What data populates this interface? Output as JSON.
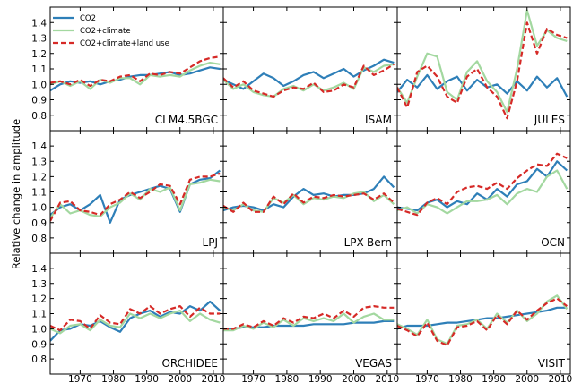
{
  "figure": {
    "ylabel": "Relative change in amplitude",
    "legend": {
      "placement": "top-left of first panel",
      "entries": [
        {
          "label": "CO2",
          "color": "#2e7fb8",
          "style": "solid"
        },
        {
          "label": "CO2+climate",
          "color": "#a3d8a0",
          "style": "solid"
        },
        {
          "label": "CO2+climate+land use",
          "color": "#d62a27",
          "style": "dashed"
        }
      ]
    }
  },
  "chart_data": {
    "type": "line",
    "layout": "3x3 small multiples",
    "xlim": [
      1961,
      2013
    ],
    "ylim": [
      0.7,
      1.5
    ],
    "x_ticks": [
      1970,
      1980,
      1990,
      2000,
      2010
    ],
    "x_tick_labels": [
      "1970",
      "1980",
      "1990",
      "2000",
      "2010"
    ],
    "y_ticks": [
      0.8,
      0.9,
      1.0,
      1.1,
      1.2,
      1.3,
      1.4
    ],
    "y_tick_labels": [
      "0.8",
      "0.9",
      "1.0",
      "1.1",
      "1.2",
      "1.3",
      "1.4"
    ],
    "grid": false,
    "x": [
      1961,
      1964,
      1967,
      1970,
      1973,
      1976,
      1979,
      1982,
      1985,
      1988,
      1991,
      1994,
      1997,
      2000,
      2003,
      2006,
      2009,
      2012
    ],
    "panels": [
      {
        "model": "CLM4.5BGC",
        "co2": [
          0.96,
          1.0,
          1.02,
          1.01,
          1.02,
          1.0,
          1.02,
          1.03,
          1.05,
          1.06,
          1.06,
          1.07,
          1.08,
          1.06,
          1.07,
          1.09,
          1.11,
          1.1
        ],
        "co2_climate": [
          1.0,
          1.02,
          0.99,
          1.02,
          0.97,
          1.03,
          1.01,
          1.04,
          1.04,
          1.0,
          1.06,
          1.05,
          1.06,
          1.05,
          1.09,
          1.12,
          1.14,
          1.13
        ],
        "co2_climate_landuse": [
          1.01,
          1.02,
          1.0,
          1.03,
          0.99,
          1.03,
          1.02,
          1.05,
          1.06,
          1.02,
          1.07,
          1.06,
          1.08,
          1.07,
          1.11,
          1.15,
          1.17,
          1.18
        ]
      },
      {
        "model": "ISAM",
        "co2": [
          1.03,
          1.0,
          0.97,
          1.02,
          1.07,
          1.04,
          0.99,
          1.02,
          1.06,
          1.08,
          1.04,
          1.07,
          1.1,
          1.05,
          1.09,
          1.12,
          1.16,
          1.14
        ],
        "co2_climate": [
          1.03,
          0.97,
          1.0,
          0.95,
          0.93,
          0.92,
          0.97,
          0.99,
          0.96,
          1.0,
          0.96,
          0.98,
          1.01,
          0.97,
          1.11,
          1.08,
          1.12,
          1.13
        ],
        "co2_climate_landuse": [
          1.04,
          0.98,
          1.02,
          0.96,
          0.94,
          0.92,
          0.96,
          0.98,
          0.97,
          1.01,
          0.95,
          0.96,
          1.0,
          0.98,
          1.12,
          1.06,
          1.09,
          1.13
        ]
      },
      {
        "model": "JULES",
        "co2": [
          0.95,
          1.03,
          0.98,
          1.06,
          0.97,
          1.02,
          1.05,
          0.96,
          1.03,
          0.98,
          1.0,
          0.94,
          1.02,
          0.96,
          1.05,
          0.98,
          1.04,
          0.92
        ],
        "co2_climate": [
          0.98,
          0.88,
          1.05,
          1.2,
          1.18,
          0.95,
          0.9,
          1.08,
          1.15,
          1.02,
          0.95,
          0.82,
          1.1,
          1.48,
          1.25,
          1.35,
          1.3,
          1.28
        ],
        "co2_climate_landuse": [
          0.98,
          0.85,
          1.08,
          1.12,
          1.05,
          0.92,
          0.88,
          1.05,
          1.1,
          0.98,
          0.92,
          0.78,
          1.02,
          1.4,
          1.2,
          1.36,
          1.32,
          1.3
        ]
      },
      {
        "model": "LPJ",
        "co2": [
          0.95,
          1.0,
          1.02,
          0.98,
          1.02,
          1.08,
          0.9,
          1.05,
          1.08,
          1.1,
          1.12,
          1.14,
          1.12,
          0.97,
          1.15,
          1.18,
          1.19,
          1.24
        ],
        "co2_climate": [
          0.93,
          1.02,
          0.96,
          0.98,
          0.95,
          0.94,
          1.0,
          1.03,
          1.09,
          1.05,
          1.12,
          1.1,
          1.13,
          0.98,
          1.15,
          1.16,
          1.18,
          1.17
        ],
        "co2_climate_landuse": [
          0.91,
          1.03,
          1.04,
          0.98,
          0.97,
          0.95,
          1.02,
          1.05,
          1.1,
          1.06,
          1.1,
          1.15,
          1.14,
          1.02,
          1.18,
          1.2,
          1.2,
          1.22
        ]
      },
      {
        "model": "LPX-Bern",
        "co2": [
          0.98,
          1.0,
          1.01,
          1.0,
          0.98,
          1.02,
          1.0,
          1.07,
          1.12,
          1.08,
          1.09,
          1.07,
          1.08,
          1.08,
          1.09,
          1.12,
          1.2,
          1.13
        ],
        "co2_climate": [
          1.0,
          0.98,
          1.02,
          0.98,
          0.97,
          1.06,
          1.03,
          1.08,
          1.02,
          1.06,
          1.05,
          1.07,
          1.06,
          1.09,
          1.1,
          1.04,
          1.08,
          1.02
        ],
        "co2_climate_landuse": [
          1.01,
          0.97,
          1.03,
          0.97,
          0.97,
          1.07,
          1.02,
          1.09,
          1.03,
          1.07,
          1.06,
          1.08,
          1.07,
          1.08,
          1.09,
          1.05,
          1.09,
          1.03
        ]
      },
      {
        "model": "OCN",
        "co2": [
          1.0,
          0.99,
          0.98,
          1.03,
          1.05,
          1.0,
          1.04,
          1.02,
          1.09,
          1.05,
          1.12,
          1.07,
          1.15,
          1.17,
          1.25,
          1.2,
          1.3,
          1.24
        ],
        "co2_climate": [
          0.98,
          1.0,
          0.96,
          1.02,
          1.0,
          0.96,
          1.0,
          1.04,
          1.04,
          1.05,
          1.08,
          1.02,
          1.09,
          1.12,
          1.1,
          1.2,
          1.24,
          1.12
        ],
        "co2_climate_landuse": [
          0.99,
          0.97,
          0.95,
          1.03,
          1.06,
          1.02,
          1.1,
          1.13,
          1.14,
          1.12,
          1.16,
          1.12,
          1.19,
          1.24,
          1.28,
          1.27,
          1.35,
          1.32
        ]
      },
      {
        "model": "ORCHIDEE",
        "co2": [
          0.92,
          0.99,
          1.0,
          1.03,
          1.02,
          1.05,
          1.01,
          0.98,
          1.07,
          1.1,
          1.12,
          1.08,
          1.11,
          1.1,
          1.15,
          1.12,
          1.18,
          1.12
        ],
        "co2_climate": [
          1.0,
          0.97,
          1.02,
          1.03,
          0.99,
          1.06,
          1.02,
          1.01,
          1.1,
          1.07,
          1.1,
          1.07,
          1.1,
          1.12,
          1.05,
          1.1,
          1.06,
          1.04
        ],
        "co2_climate_landuse": [
          1.02,
          0.99,
          1.06,
          1.05,
          1.0,
          1.09,
          1.04,
          1.03,
          1.13,
          1.1,
          1.15,
          1.1,
          1.13,
          1.15,
          1.08,
          1.14,
          1.1,
          1.1
        ]
      },
      {
        "model": "VEGAS",
        "co2": [
          1.0,
          1.0,
          1.01,
          1.01,
          1.01,
          1.02,
          1.02,
          1.02,
          1.02,
          1.03,
          1.03,
          1.03,
          1.03,
          1.04,
          1.04,
          1.04,
          1.05,
          1.05
        ],
        "co2_climate": [
          0.99,
          0.99,
          1.02,
          1.0,
          1.04,
          1.01,
          1.06,
          1.02,
          1.07,
          1.05,
          1.07,
          1.05,
          1.1,
          1.04,
          1.08,
          1.1,
          1.06,
          1.06
        ],
        "co2_climate_landuse": [
          1.0,
          1.0,
          1.03,
          1.01,
          1.05,
          1.02,
          1.07,
          1.04,
          1.08,
          1.07,
          1.1,
          1.07,
          1.12,
          1.08,
          1.14,
          1.15,
          1.14,
          1.14
        ]
      },
      {
        "model": "VISIT",
        "co2": [
          1.0,
          1.02,
          1.02,
          1.02,
          1.03,
          1.04,
          1.04,
          1.05,
          1.06,
          1.07,
          1.07,
          1.08,
          1.09,
          1.1,
          1.11,
          1.12,
          1.14,
          1.14
        ],
        "co2_climate": [
          1.03,
          1.0,
          0.96,
          1.06,
          0.93,
          0.9,
          1.02,
          1.03,
          1.06,
          1.0,
          1.1,
          1.04,
          1.12,
          1.05,
          1.1,
          1.18,
          1.22,
          1.13
        ],
        "co2_climate_landuse": [
          1.02,
          0.99,
          0.95,
          1.04,
          0.92,
          0.89,
          1.01,
          1.02,
          1.05,
          0.99,
          1.09,
          1.03,
          1.12,
          1.06,
          1.12,
          1.17,
          1.2,
          1.15
        ]
      }
    ]
  }
}
